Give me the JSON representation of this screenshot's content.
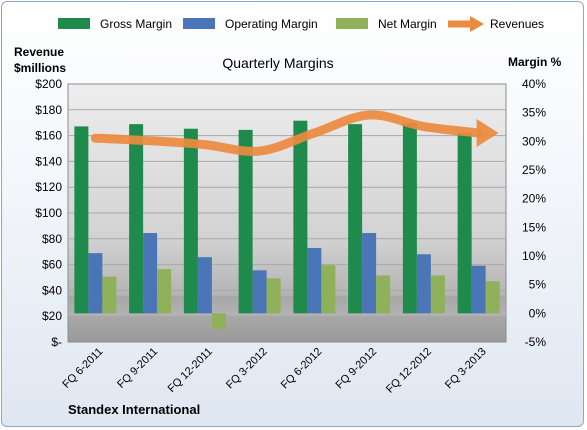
{
  "chart_data": {
    "type": "bar",
    "title": "Quarterly Margins",
    "left_axis_label_line1": "Revenue",
    "left_axis_label_line2": "$millions",
    "right_axis_label": "Margin %",
    "footer": "Standex International",
    "categories": [
      "FQ 6-2011",
      "FQ 9-2011",
      "FQ 12-2011",
      "FQ 3-2012",
      "FQ 6-2012",
      "FQ 9-2012",
      "FQ 12-2012",
      "FQ 3-2013"
    ],
    "left_axis": {
      "min": 0,
      "max": 200,
      "step": 20,
      "tick_labels": [
        "$-",
        "$20",
        "$40",
        "$60",
        "$80",
        "$100",
        "$120",
        "$140",
        "$160",
        "$180",
        "$200"
      ]
    },
    "right_axis": {
      "min": -5,
      "max": 40,
      "step": 5,
      "tick_labels": [
        "-5%",
        "0%",
        "5%",
        "10%",
        "15%",
        "20%",
        "25%",
        "30%",
        "35%",
        "40%"
      ]
    },
    "series": [
      {
        "name": "Gross Margin",
        "axis": "right",
        "type": "bar",
        "color": "#1e8a4c",
        "values": [
          32.6,
          33.0,
          32.2,
          32.0,
          33.6,
          33.0,
          33.2,
          31.5
        ]
      },
      {
        "name": "Operating Margin",
        "axis": "right",
        "type": "bar",
        "color": "#4a76b8",
        "values": [
          10.5,
          14.0,
          9.8,
          7.5,
          11.4,
          14.0,
          10.3,
          8.3
        ]
      },
      {
        "name": "Net Margin",
        "axis": "right",
        "type": "bar",
        "color": "#8fb159",
        "values": [
          6.4,
          7.7,
          -2.7,
          6.1,
          8.4,
          6.6,
          6.6,
          5.6
        ]
      },
      {
        "name": "Revenues",
        "axis": "left",
        "type": "line",
        "color": "#ec8a3e",
        "values": [
          158,
          156,
          153,
          148,
          162,
          176,
          167,
          162
        ]
      }
    ],
    "grid": true,
    "legend": "top"
  }
}
